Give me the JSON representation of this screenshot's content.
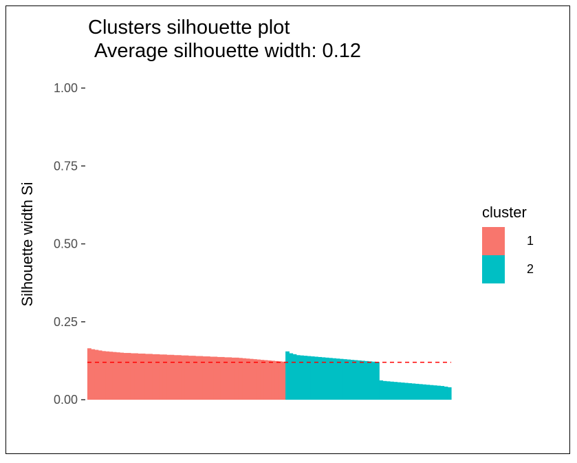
{
  "chart_data": {
    "type": "bar",
    "title": "Clusters silhouette plot",
    "subtitle": "Average silhouette width: 0.12",
    "xlabel": "",
    "ylabel": "Silhouette width Si",
    "ylim": [
      0,
      1
    ],
    "yticks": [
      "0.00",
      "0.25",
      "0.50",
      "0.75",
      "1.00"
    ],
    "grid": false,
    "legend": {
      "title": "cluster",
      "position": "right",
      "entries": [
        "1",
        "2"
      ]
    },
    "average_line": {
      "value": 0.12,
      "color": "#ff0000",
      "style": "dashed"
    },
    "series": [
      {
        "name": "1",
        "color": "#f8766d",
        "values": [
          0.165,
          0.162,
          0.16,
          0.158,
          0.156,
          0.155,
          0.154,
          0.153,
          0.152,
          0.151,
          0.15,
          0.15,
          0.149,
          0.149,
          0.148,
          0.148,
          0.147,
          0.147,
          0.146,
          0.146,
          0.145,
          0.145,
          0.144,
          0.144,
          0.143,
          0.143,
          0.142,
          0.142,
          0.141,
          0.141,
          0.14,
          0.14,
          0.139,
          0.139,
          0.138,
          0.138,
          0.137,
          0.137,
          0.136,
          0.136,
          0.135,
          0.135,
          0.134,
          0.133,
          0.132,
          0.131,
          0.13,
          0.129,
          0.128,
          0.127,
          0.126,
          0.125,
          0.124,
          0.123,
          0.122
        ]
      },
      {
        "name": "2",
        "color": "#00bfc4",
        "values": [
          0.155,
          0.149,
          0.146,
          0.143,
          0.142,
          0.141,
          0.14,
          0.139,
          0.138,
          0.137,
          0.136,
          0.135,
          0.134,
          0.133,
          0.132,
          0.131,
          0.13,
          0.129,
          0.128,
          0.127,
          0.126,
          0.125,
          0.124,
          0.123,
          0.122,
          0.121,
          0.062,
          0.06,
          0.059,
          0.058,
          0.057,
          0.056,
          0.055,
          0.054,
          0.053,
          0.052,
          0.051,
          0.05,
          0.049,
          0.048,
          0.047,
          0.046,
          0.045,
          0.044,
          0.042,
          0.04
        ]
      }
    ]
  }
}
